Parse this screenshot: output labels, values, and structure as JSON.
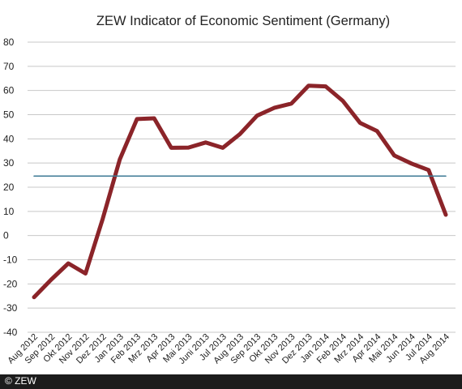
{
  "credit": "© ZEW",
  "chart_data": {
    "type": "line",
    "title": "ZEW Indicator of Economic Sentiment (Germany)",
    "xlabel": "",
    "ylabel": "",
    "ylim": [
      -40,
      80
    ],
    "yticks": [
      80,
      70,
      60,
      50,
      40,
      30,
      20,
      10,
      0,
      -10,
      -20,
      -30,
      -40
    ],
    "grid": "horizontal",
    "categories": [
      "Aug 2012",
      "Sep 2012",
      "Okt 2012",
      "Nov 2012",
      "Dez 2012",
      "Jan 2013",
      "Feb 2013",
      "Mrz 2013",
      "Apr 2013",
      "Mai 2013",
      "Juni 2013",
      "Jul 2013",
      "Aug 2013",
      "Sep 2013",
      "Okt 2013",
      "Nov 2013",
      "Dez 2013",
      "Jan 2014",
      "Feb 2014",
      "Mrz 2014",
      "Apr 2014",
      "Mai 2014",
      "Jun 2014",
      "Jul 2014",
      "Aug 2014"
    ],
    "series": [
      {
        "values": [
          -25.5,
          -18.2,
          -11.5,
          -15.7,
          6.9,
          31.5,
          48.2,
          48.5,
          36.3,
          36.4,
          38.5,
          36.3,
          42.0,
          49.6,
          52.8,
          54.6,
          62.0,
          61.7,
          55.7,
          46.6,
          43.2,
          33.1,
          29.8,
          27.1,
          8.6
        ],
        "color": "#8b2429"
      },
      {
        "values": [
          24.6,
          24.6,
          24.6,
          24.6,
          24.6,
          24.6,
          24.6,
          24.6,
          24.6,
          24.6,
          24.6,
          24.6,
          24.6,
          24.6,
          24.6,
          24.6,
          24.6,
          24.6,
          24.6,
          24.6,
          24.6,
          24.6,
          24.6,
          24.6,
          24.6
        ],
        "color": "#3d7a95"
      }
    ]
  }
}
